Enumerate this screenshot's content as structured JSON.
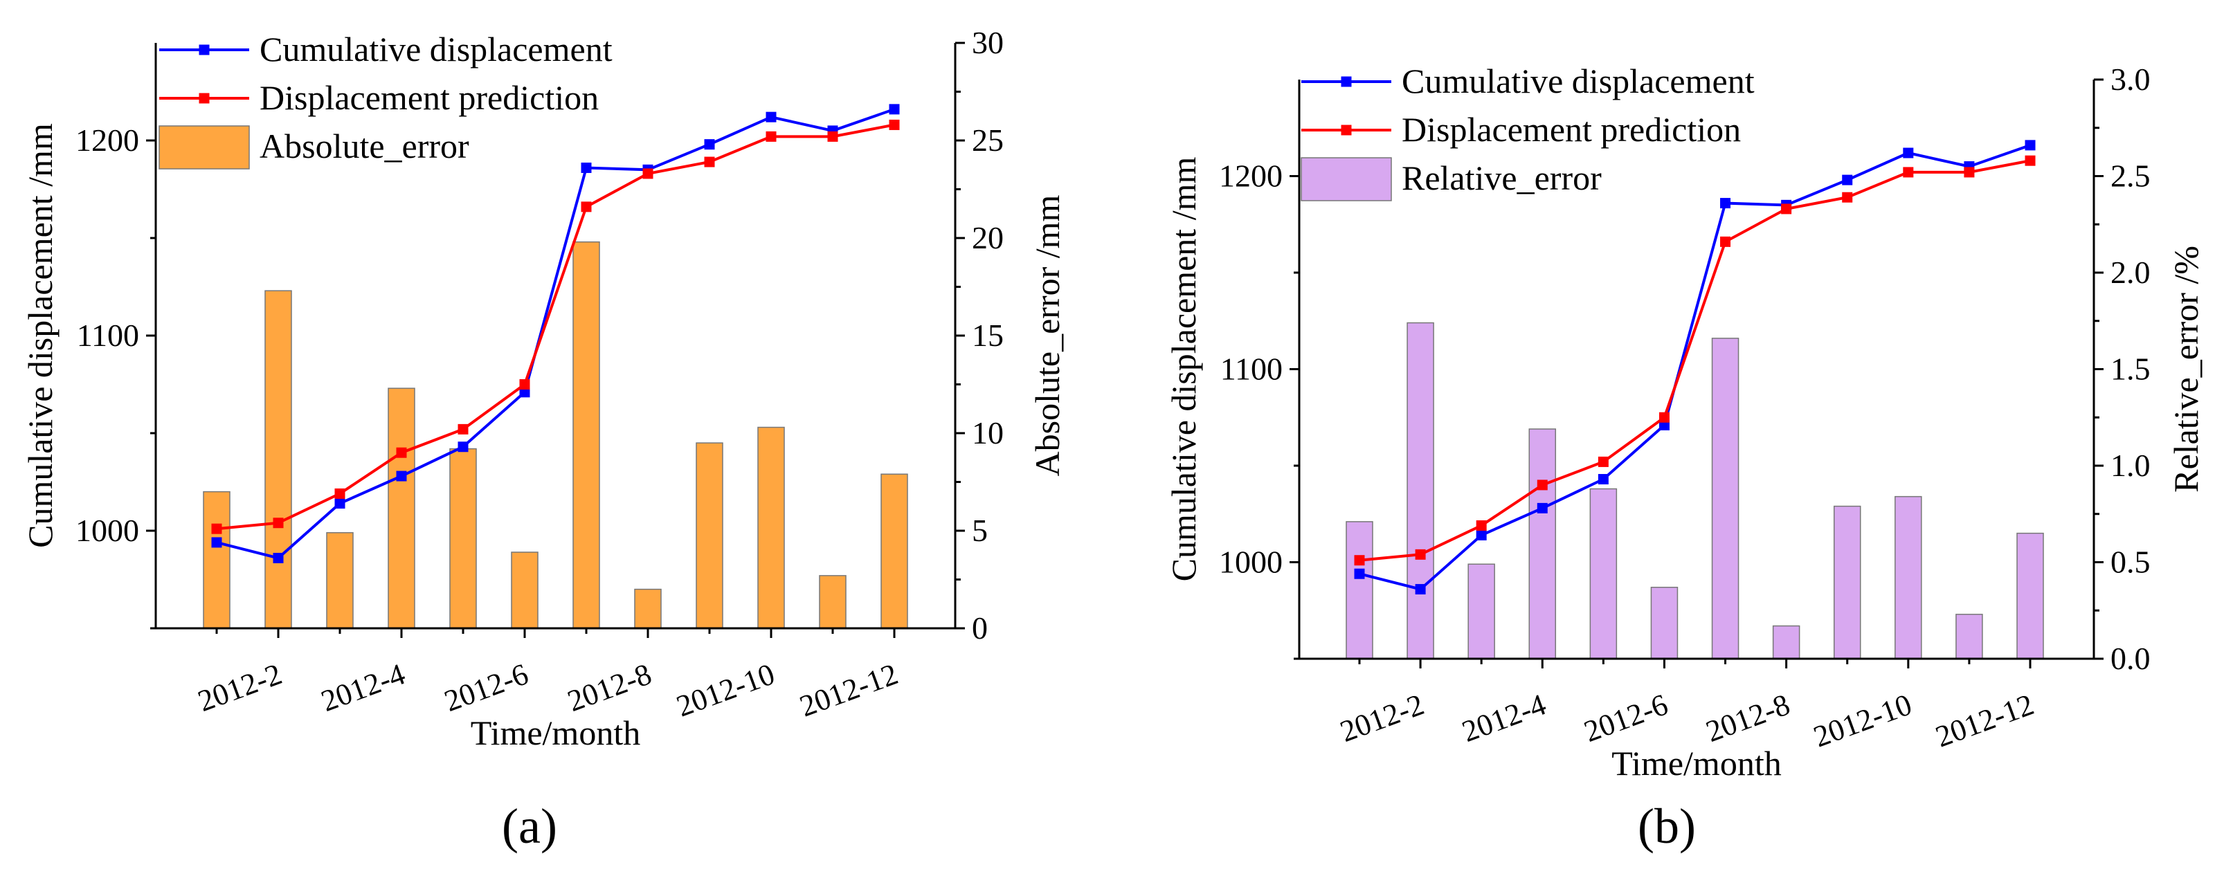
{
  "chart_data": [
    {
      "panel_label": "(a)",
      "type": "bar+line",
      "categories": [
        "2012-1",
        "2012-2",
        "2012-3",
        "2012-4",
        "2012-5",
        "2012-6",
        "2012-7",
        "2012-8",
        "2012-9",
        "2012-10",
        "2012-11",
        "2012-12"
      ],
      "xtick_labels": [
        "2012-2",
        "2012-4",
        "2012-6",
        "2012-8",
        "2012-10",
        "2012-12"
      ],
      "xlabel": "Time/month",
      "ylabel_left": "Cumulative displacement /mm",
      "ylabel_right": "Absolute_error /mm",
      "ylim_left": [
        950,
        1250
      ],
      "ylim_right": [
        0,
        30
      ],
      "yticks_left": [
        1000,
        1100,
        1200
      ],
      "yticks_right": [
        0,
        5,
        10,
        15,
        20,
        25,
        30
      ],
      "series": [
        {
          "name": "Cumulative displacement",
          "kind": "line",
          "axis": "left",
          "color": "#0000ff",
          "values": [
            994,
            986,
            1014,
            1028,
            1043,
            1071,
            1186,
            1185,
            1198,
            1212,
            1205,
            1216
          ]
        },
        {
          "name": "Displacement prediction",
          "kind": "line",
          "axis": "left",
          "color": "#ff0000",
          "values": [
            1001,
            1004,
            1019,
            1040,
            1052,
            1075,
            1166,
            1183,
            1189,
            1202,
            1202,
            1208
          ]
        },
        {
          "name": "Absolute_error",
          "kind": "bar",
          "axis": "right",
          "color": "#ffa640",
          "values": [
            7.0,
            17.3,
            4.9,
            12.3,
            9.2,
            3.9,
            19.8,
            2.0,
            9.5,
            10.3,
            2.7,
            7.9
          ]
        }
      ],
      "legend_position": "top-left"
    },
    {
      "panel_label": "(b)",
      "type": "bar+line",
      "categories": [
        "2012-1",
        "2012-2",
        "2012-3",
        "2012-4",
        "2012-5",
        "2012-6",
        "2012-7",
        "2012-8",
        "2012-9",
        "2012-10",
        "2012-11",
        "2012-12"
      ],
      "xtick_labels": [
        "2012-2",
        "2012-4",
        "2012-6",
        "2012-8",
        "2012-10",
        "2012-12"
      ],
      "xlabel": "Time/month",
      "ylabel_left": "Cumulative displacement /mm",
      "ylabel_right": "Relative_error /%",
      "ylim_left": [
        950,
        1250
      ],
      "ylim_right": [
        0,
        3
      ],
      "yticks_left": [
        1000,
        1100,
        1200
      ],
      "yticks_right": [
        "0.0",
        "0.5",
        "1.0",
        "1.5",
        "2.0",
        "2.5",
        "3.0"
      ],
      "series": [
        {
          "name": "Cumulative displacement",
          "kind": "line",
          "axis": "left",
          "color": "#0000ff",
          "values": [
            994,
            986,
            1014,
            1028,
            1043,
            1071,
            1186,
            1185,
            1198,
            1212,
            1205,
            1216
          ]
        },
        {
          "name": "Displacement prediction",
          "kind": "line",
          "axis": "left",
          "color": "#ff0000",
          "values": [
            1001,
            1004,
            1019,
            1040,
            1052,
            1075,
            1166,
            1183,
            1189,
            1202,
            1202,
            1208
          ]
        },
        {
          "name": "Relative_error",
          "kind": "bar",
          "axis": "right",
          "color": "#d8a8f0",
          "values": [
            0.71,
            1.74,
            0.49,
            1.19,
            0.88,
            0.37,
            1.66,
            0.17,
            0.79,
            0.84,
            0.23,
            0.65
          ]
        }
      ],
      "legend_position": "top-left"
    }
  ]
}
